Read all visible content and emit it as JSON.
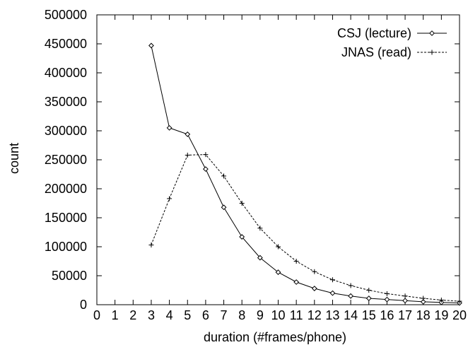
{
  "chart_data": {
    "type": "line",
    "xlabel": "duration (#frames/phone)",
    "ylabel": "count",
    "xlim": [
      0,
      20
    ],
    "ylim": [
      0,
      500000
    ],
    "x_ticks": [
      "0",
      "1",
      "2",
      "3",
      "4",
      "5",
      "6",
      "7",
      "8",
      "9",
      "10",
      "11",
      "12",
      "13",
      "14",
      "15",
      "16",
      "17",
      "18",
      "19",
      "20"
    ],
    "y_ticks": [
      "0",
      "50000",
      "100000",
      "150000",
      "200000",
      "250000",
      "300000",
      "350000",
      "400000",
      "450000",
      "500000"
    ],
    "legend_position": "top-right",
    "grid": false,
    "series": [
      {
        "name": "CSJ (lecture)",
        "marker": "diamond",
        "line_style": "solid",
        "x": [
          3,
          4,
          5,
          6,
          7,
          8,
          9,
          10,
          11,
          12,
          13,
          14,
          15,
          16,
          17,
          18,
          19,
          20
        ],
        "y": [
          447000,
          305000,
          294000,
          234000,
          168000,
          117000,
          81000,
          56000,
          39000,
          28000,
          20000,
          15000,
          11000,
          9000,
          7000,
          5000,
          4000,
          3000
        ]
      },
      {
        "name": "JNAS (read)",
        "marker": "plus",
        "line_style": "dashed",
        "x": [
          3,
          4,
          5,
          6,
          7,
          8,
          9,
          10,
          11,
          12,
          13,
          14,
          15,
          16,
          17,
          18,
          19,
          20
        ],
        "y": [
          103000,
          183000,
          258000,
          259000,
          222000,
          175000,
          132000,
          100000,
          75000,
          57000,
          43000,
          33000,
          25000,
          19000,
          15000,
          11000,
          8000,
          6000
        ]
      }
    ]
  }
}
